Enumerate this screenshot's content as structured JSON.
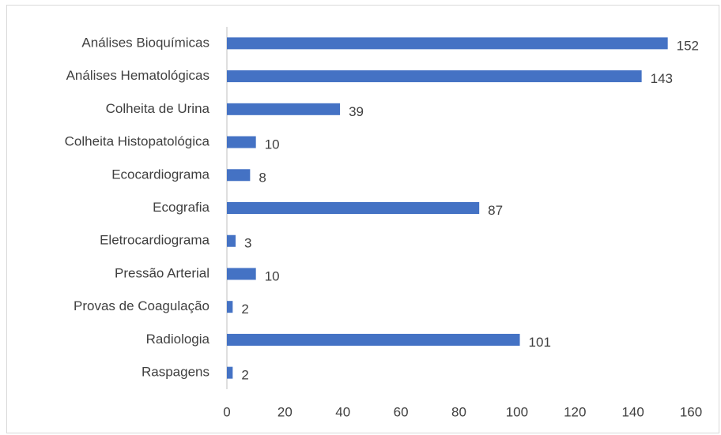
{
  "chart_data": {
    "type": "bar",
    "orientation": "horizontal",
    "categories": [
      "Análises Bioquímicas",
      "Análises Hematológicas",
      "Colheita de Urina",
      "Colheita Histopatológica",
      "Ecocardiograma",
      "Ecografia",
      "Eletrocardiograma",
      "Pressão Arterial",
      "Provas de Coagulação",
      "Radiologia",
      "Raspagens"
    ],
    "values": [
      152,
      143,
      39,
      10,
      8,
      87,
      3,
      10,
      2,
      101,
      2
    ],
    "color": "#4472c4",
    "xlim": [
      0,
      160
    ],
    "xticks": [
      0,
      20,
      40,
      60,
      80,
      100,
      120,
      140,
      160
    ],
    "grid": false,
    "data_labels": true
  }
}
